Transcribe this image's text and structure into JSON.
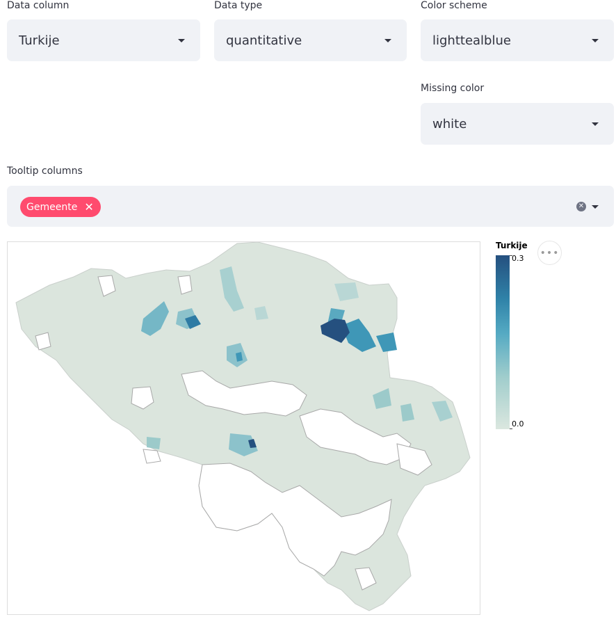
{
  "controls": {
    "data_column": {
      "label": "Data column",
      "value": "Turkije"
    },
    "data_type": {
      "label": "Data type",
      "value": "quantitative"
    },
    "color_scheme": {
      "label": "Color scheme",
      "value": "lighttealblue"
    },
    "missing_color": {
      "label": "Missing color",
      "value": "white"
    },
    "tooltip_columns": {
      "label": "Tooltip columns",
      "selected": [
        "Gemeente"
      ]
    }
  },
  "legend": {
    "title": "Turkije",
    "max_label": "0.3",
    "min_label": "0.0"
  },
  "colors": {
    "chip": "#ff4b6e",
    "missing": "#ffffff",
    "scale_low": "#dbe7df",
    "scale_high": "#25507f"
  },
  "icons": {
    "more": "ellipsis-icon",
    "clear": "clear-circle-icon",
    "caret": "chevron-down-icon"
  }
}
